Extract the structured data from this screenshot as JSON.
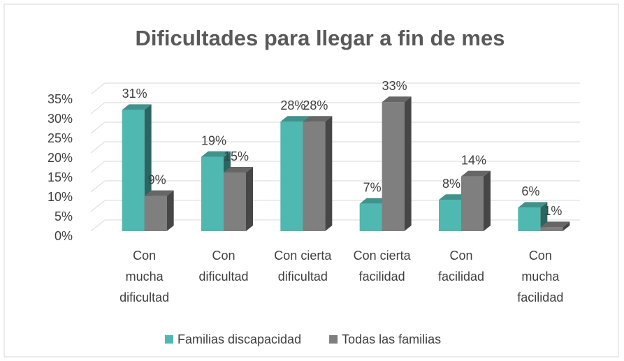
{
  "chart_data": {
    "type": "bar3d",
    "title": "Dificultades para llegar a fin de mes",
    "categories": [
      [
        "Con",
        "mucha",
        "dificultad"
      ],
      [
        "Con",
        "dificultad"
      ],
      [
        "Con cierta",
        "dificultad"
      ],
      [
        "Con cierta",
        "facilidad"
      ],
      [
        "Con",
        "facilidad"
      ],
      [
        "Con",
        "mucha",
        "facilidad"
      ]
    ],
    "series": [
      {
        "name": "Familias discapacidad",
        "color": "#4fb8b0",
        "values": [
          31,
          19,
          28,
          7,
          8,
          6
        ],
        "value_labels": [
          "31%",
          "19%",
          "28%",
          "7%",
          "8%",
          "6%"
        ]
      },
      {
        "name": "Todas las familias",
        "color": "#7f7f7f",
        "values": [
          9,
          15,
          28,
          33,
          14,
          1
        ],
        "value_labels": [
          "9%",
          "15%",
          "28%",
          "33%",
          "14%",
          "1%"
        ]
      }
    ],
    "ylim": [
      0,
      35
    ],
    "yticks": [
      {
        "value": 0,
        "label": "0%"
      },
      {
        "value": 5,
        "label": "5%"
      },
      {
        "value": 10,
        "label": "10%"
      },
      {
        "value": 15,
        "label": "15%"
      },
      {
        "value": 20,
        "label": "20%"
      },
      {
        "value": 25,
        "label": "25%"
      },
      {
        "value": 30,
        "label": "30%"
      },
      {
        "value": 35,
        "label": "35%"
      }
    ],
    "grid": true
  }
}
